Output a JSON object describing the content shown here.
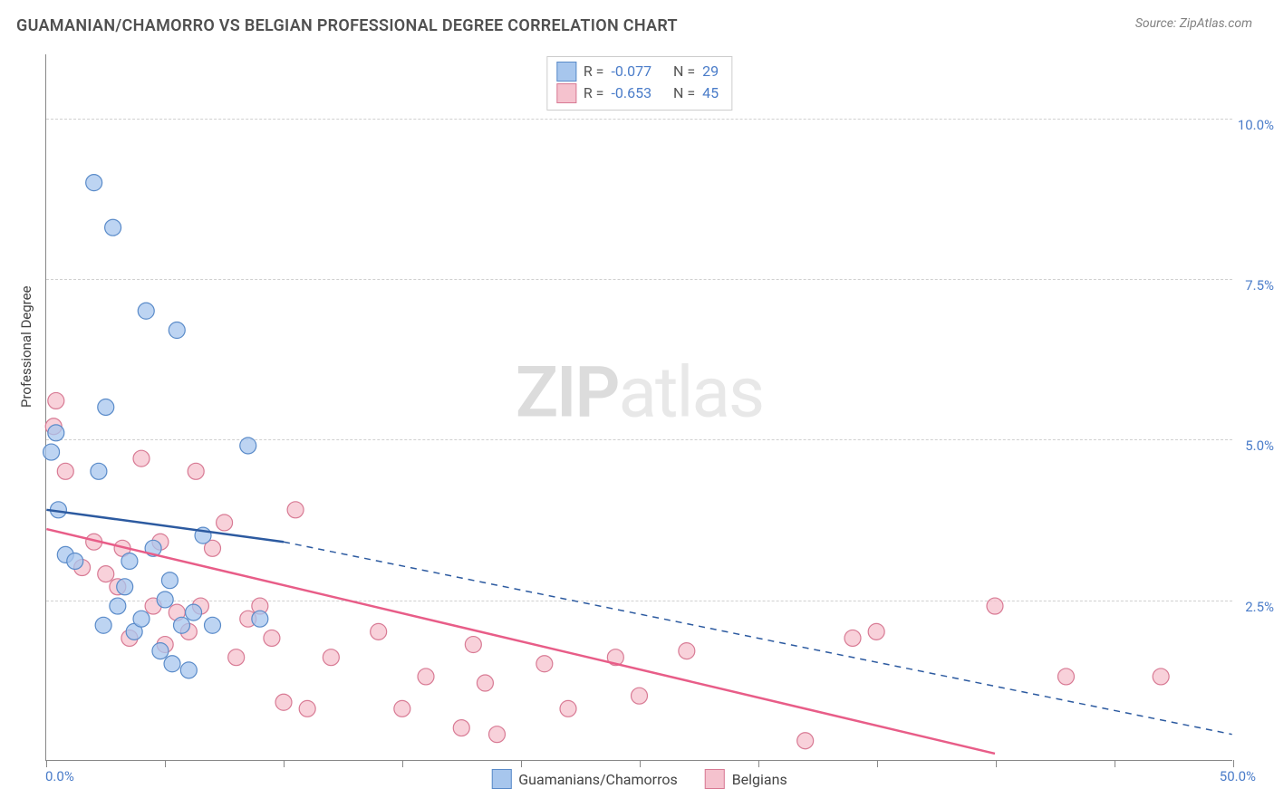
{
  "title": "GUAMANIAN/CHAMORRO VS BELGIAN PROFESSIONAL DEGREE CORRELATION CHART",
  "source": "Source: ZipAtlas.com",
  "ylabel": "Professional Degree",
  "watermark_zip": "ZIP",
  "watermark_atlas": "atlas",
  "chart": {
    "type": "scatter",
    "xlim": [
      0,
      50
    ],
    "ylim": [
      0,
      11
    ],
    "y_ticks": [
      {
        "v": 2.5,
        "label": "2.5%"
      },
      {
        "v": 5.0,
        "label": "5.0%"
      },
      {
        "v": 7.5,
        "label": "7.5%"
      },
      {
        "v": 10.0,
        "label": "10.0%"
      }
    ],
    "x_ticks": [
      0,
      5,
      10,
      15,
      20,
      25,
      30,
      35,
      40,
      45,
      50
    ],
    "x_tick_labels": {
      "start": "0.0%",
      "end": "50.0%"
    },
    "grid_color": "#d0d0d0",
    "background_color": "#ffffff",
    "marker_radius": 9,
    "marker_stroke_width": 1.2,
    "line_width_solid": 2.5,
    "series": [
      {
        "key": "guamanian",
        "label": "Guamanians/Chamorros",
        "fill": "#a7c6ed",
        "stroke": "#5a8bc9",
        "line_color": "#2c5aa0",
        "R": "-0.077",
        "N": "29",
        "trend_solid": {
          "x1": 0,
          "y1": 3.9,
          "x2": 10,
          "y2": 3.4
        },
        "trend_dashed": {
          "x1": 10,
          "y1": 3.4,
          "x2": 50,
          "y2": 0.4
        },
        "points": [
          [
            0.2,
            4.8
          ],
          [
            0.4,
            5.1
          ],
          [
            0.5,
            3.9
          ],
          [
            0.8,
            3.2
          ],
          [
            1.2,
            3.1
          ],
          [
            2.0,
            9.0
          ],
          [
            2.2,
            4.5
          ],
          [
            2.4,
            2.1
          ],
          [
            2.5,
            5.5
          ],
          [
            2.8,
            8.3
          ],
          [
            3.0,
            2.4
          ],
          [
            3.3,
            2.7
          ],
          [
            3.5,
            3.1
          ],
          [
            3.7,
            2.0
          ],
          [
            4.0,
            2.2
          ],
          [
            4.2,
            7.0
          ],
          [
            4.5,
            3.3
          ],
          [
            4.8,
            1.7
          ],
          [
            5.0,
            2.5
          ],
          [
            5.2,
            2.8
          ],
          [
            5.3,
            1.5
          ],
          [
            5.5,
            6.7
          ],
          [
            5.7,
            2.1
          ],
          [
            6.0,
            1.4
          ],
          [
            6.2,
            2.3
          ],
          [
            6.6,
            3.5
          ],
          [
            7.0,
            2.1
          ],
          [
            8.5,
            4.9
          ],
          [
            9.0,
            2.2
          ]
        ]
      },
      {
        "key": "belgian",
        "label": "Belgians",
        "fill": "#f5c2ce",
        "stroke": "#d87a94",
        "line_color": "#e85d88",
        "R": "-0.653",
        "N": "45",
        "trend_solid": {
          "x1": 0,
          "y1": 3.6,
          "x2": 40,
          "y2": 0.1
        },
        "trend_dashed": null,
        "points": [
          [
            0.3,
            5.2
          ],
          [
            0.4,
            5.6
          ],
          [
            0.8,
            4.5
          ],
          [
            1.5,
            3.0
          ],
          [
            2.0,
            3.4
          ],
          [
            2.5,
            2.9
          ],
          [
            3.0,
            2.7
          ],
          [
            3.2,
            3.3
          ],
          [
            3.5,
            1.9
          ],
          [
            4.0,
            4.7
          ],
          [
            4.5,
            2.4
          ],
          [
            4.8,
            3.4
          ],
          [
            5.0,
            1.8
          ],
          [
            5.5,
            2.3
          ],
          [
            6.0,
            2.0
          ],
          [
            6.3,
            4.5
          ],
          [
            6.5,
            2.4
          ],
          [
            7.0,
            3.3
          ],
          [
            7.5,
            3.7
          ],
          [
            8.0,
            1.6
          ],
          [
            8.5,
            2.2
          ],
          [
            9.0,
            2.4
          ],
          [
            9.5,
            1.9
          ],
          [
            10.0,
            0.9
          ],
          [
            10.5,
            3.9
          ],
          [
            11.0,
            0.8
          ],
          [
            12.0,
            1.6
          ],
          [
            14.0,
            2.0
          ],
          [
            15.0,
            0.8
          ],
          [
            16.0,
            1.3
          ],
          [
            17.5,
            0.5
          ],
          [
            18.0,
            1.8
          ],
          [
            18.5,
            1.2
          ],
          [
            19.0,
            0.4
          ],
          [
            21.0,
            1.5
          ],
          [
            22.0,
            0.8
          ],
          [
            24.0,
            1.6
          ],
          [
            25.0,
            1.0
          ],
          [
            27.0,
            1.7
          ],
          [
            32.0,
            0.3
          ],
          [
            34.0,
            1.9
          ],
          [
            35.0,
            2.0
          ],
          [
            40.0,
            2.4
          ],
          [
            43.0,
            1.3
          ],
          [
            47.0,
            1.3
          ]
        ]
      }
    ],
    "stat_legend": {
      "R_label": "R =",
      "N_label": "N ="
    }
  }
}
